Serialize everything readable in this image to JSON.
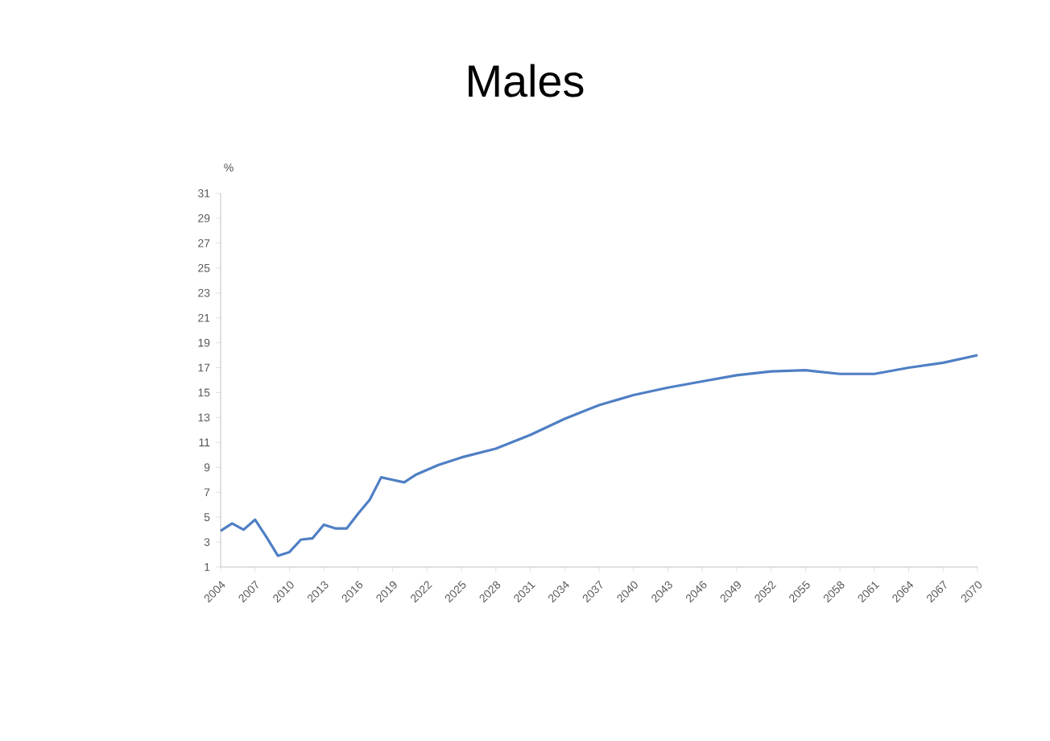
{
  "chart_data": {
    "type": "line",
    "title": "Males",
    "ylabel": "%",
    "x": [
      2004,
      2005,
      2006,
      2007,
      2008,
      2009,
      2010,
      2011,
      2012,
      2013,
      2014,
      2015,
      2016,
      2017,
      2018,
      2019,
      2020,
      2021,
      2022,
      2023,
      2025,
      2028,
      2031,
      2034,
      2037,
      2040,
      2043,
      2046,
      2049,
      2052,
      2055,
      2058,
      2061,
      2064,
      2067,
      2070
    ],
    "series": [
      {
        "color": "#4f7fc4",
        "values": [
          3.9,
          4.5,
          4.0,
          4.8,
          3.4,
          1.9,
          2.2,
          3.2,
          3.3,
          4.4,
          4.1,
          4.1,
          5.3,
          6.4,
          8.2,
          8.0,
          7.8,
          8.4,
          8.8,
          9.2,
          9.8,
          10.5,
          11.6,
          12.9,
          14.0,
          14.8,
          15.4,
          15.9,
          16.4,
          16.7,
          16.8,
          16.5,
          16.5,
          17.0,
          17.4,
          18.0
        ]
      }
    ],
    "xlim": [
      2004,
      2070
    ],
    "xticks": [
      2004,
      2007,
      2010,
      2013,
      2016,
      2019,
      2022,
      2025,
      2028,
      2031,
      2034,
      2037,
      2040,
      2043,
      2046,
      2049,
      2052,
      2055,
      2058,
      2061,
      2064,
      2067,
      2070
    ],
    "ylim": [
      1,
      31
    ],
    "yticks": [
      1,
      3,
      5,
      7,
      9,
      11,
      13,
      15,
      17,
      19,
      21,
      23,
      25,
      27,
      29,
      31
    ],
    "grid": false,
    "marker": "none",
    "line_style": "solid"
  }
}
